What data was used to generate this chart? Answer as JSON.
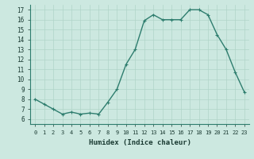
{
  "x": [
    0,
    1,
    2,
    3,
    4,
    5,
    6,
    7,
    8,
    9,
    10,
    11,
    12,
    13,
    14,
    15,
    16,
    17,
    18,
    19,
    20,
    21,
    22,
    23
  ],
  "y": [
    8.0,
    7.5,
    7.0,
    6.5,
    6.7,
    6.5,
    6.6,
    6.5,
    7.7,
    9.0,
    11.5,
    13.0,
    15.9,
    16.5,
    16.0,
    16.0,
    16.0,
    17.0,
    17.0,
    16.5,
    14.5,
    13.0,
    10.7,
    8.7
  ],
  "line_color": "#2e7d6e",
  "marker_color": "#2e7d6e",
  "bg_color": "#cce8e0",
  "grid_color": "#b0d4c8",
  "xlabel": "Humidex (Indice chaleur)",
  "xlim": [
    -0.5,
    23.5
  ],
  "ylim": [
    5.5,
    17.5
  ],
  "yticks": [
    6,
    7,
    8,
    9,
    10,
    11,
    12,
    13,
    14,
    15,
    16,
    17
  ],
  "xticks": [
    0,
    1,
    2,
    3,
    4,
    5,
    6,
    7,
    8,
    9,
    10,
    11,
    12,
    13,
    14,
    15,
    16,
    17,
    18,
    19,
    20,
    21,
    22,
    23
  ],
  "xtick_labels": [
    "0",
    "1",
    "2",
    "3",
    "4",
    "5",
    "6",
    "7",
    "8",
    "9",
    "10",
    "11",
    "12",
    "13",
    "14",
    "15",
    "16",
    "17",
    "18",
    "19",
    "20",
    "21",
    "22",
    "23"
  ],
  "line_width": 1.0,
  "marker_size": 2.5
}
